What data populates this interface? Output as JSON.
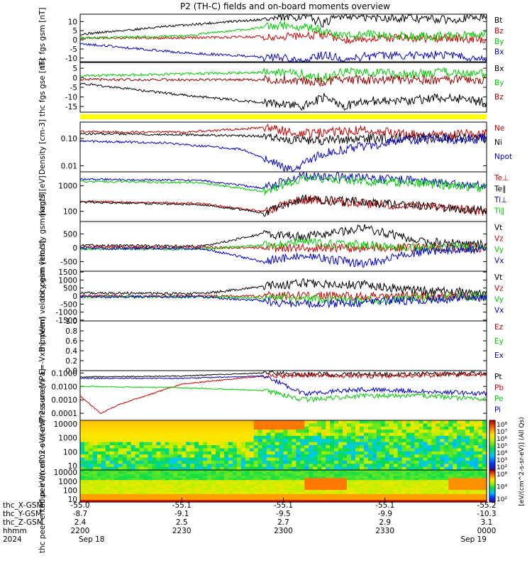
{
  "figure_title": "P2 (TH-C) fields and on-board moments overview",
  "chart_data": [
    {
      "type": "line",
      "ylabel": "thc fgs gsm [nT]",
      "y_ticks": [
        "10",
        "5",
        "0",
        "-5",
        "-10"
      ],
      "ylim": [
        -12,
        14
      ],
      "series": [
        {
          "name": "Bt",
          "color": "#000000",
          "x": [
            0,
            0.25,
            0.5,
            0.55,
            0.6,
            0.65,
            0.7,
            0.8,
            0.9,
            1.0
          ],
          "y": [
            3,
            8,
            12,
            13,
            9,
            14,
            12,
            12,
            11,
            13
          ]
        },
        {
          "name": "Bz",
          "color": "#cc0000",
          "x": [
            0,
            0.25,
            0.5,
            0.55,
            0.6,
            0.65,
            0.7,
            0.8,
            0.9,
            1.0
          ],
          "y": [
            1,
            1,
            2,
            2,
            3,
            0,
            1,
            1,
            1,
            0
          ]
        },
        {
          "name": "By",
          "color": "#00cc00",
          "x": [
            0,
            0.25,
            0.5,
            0.55,
            0.6,
            0.65,
            0.7,
            0.8,
            0.9,
            1.0
          ],
          "y": [
            1,
            2,
            8,
            7,
            5,
            2,
            3,
            2,
            2,
            3
          ]
        },
        {
          "name": "Bx",
          "color": "#0000cc",
          "x": [
            0,
            0.25,
            0.5,
            0.55,
            0.6,
            0.65,
            0.7,
            0.8,
            0.9,
            1.0
          ],
          "y": [
            -2,
            -7,
            -10,
            -12,
            -8,
            -11,
            -9,
            -9,
            -8,
            -11
          ]
        }
      ]
    },
    {
      "type": "line",
      "ylabel": "thc fgs gse [nT]",
      "y_ticks": [
        "5",
        "0",
        "-5",
        "-10",
        "-15"
      ],
      "ylim": [
        -18,
        8
      ],
      "series": [
        {
          "name": "Bx",
          "color": "#000000",
          "x": [
            0,
            0.25,
            0.5,
            0.55,
            0.6,
            0.65,
            0.7,
            0.8,
            0.9,
            1.0
          ],
          "y": [
            -3,
            -9,
            -14,
            -15,
            -10,
            -15,
            -12,
            -12,
            -10,
            -13
          ]
        },
        {
          "name": "By",
          "color": "#00cc00",
          "x": [
            0,
            0.25,
            0.5,
            0.55,
            0.6,
            0.65,
            0.7,
            0.8,
            0.9,
            1.0
          ],
          "y": [
            1,
            2,
            3,
            2,
            0,
            3,
            3,
            2,
            3,
            2
          ]
        },
        {
          "name": "Bz",
          "color": "#990000",
          "x": [
            0,
            0.25,
            0.5,
            0.55,
            0.6,
            0.65,
            0.7,
            0.8,
            0.9,
            1.0
          ],
          "y": [
            -1,
            -1,
            -1,
            -2,
            -2,
            -1,
            -1,
            -1,
            -1,
            -1
          ]
        }
      ]
    },
    {
      "type": "line",
      "ylabel": "Density [cm-3]",
      "y_ticks": [
        "0.10",
        "0.01"
      ],
      "ylog": true,
      "ylim": [
        0.006,
        0.4
      ],
      "series": [
        {
          "name": "Ne",
          "color": "#cc0000",
          "x": [
            0,
            0.25,
            0.45,
            0.55,
            0.7,
            0.85,
            1.0
          ],
          "y": [
            0.18,
            0.17,
            0.25,
            0.15,
            0.2,
            0.14,
            0.15
          ]
        },
        {
          "name": "Ni",
          "color": "#000000",
          "x": [
            0,
            0.25,
            0.45,
            0.55,
            0.7,
            0.85,
            1.0
          ],
          "y": [
            0.15,
            0.14,
            0.12,
            0.08,
            0.1,
            0.11,
            0.1
          ]
        },
        {
          "name": "Npot",
          "color": "#0000cc",
          "x": [
            0,
            0.2,
            0.4,
            0.52,
            0.6,
            0.8,
            1.0
          ],
          "y": [
            0.08,
            0.07,
            0.04,
            0.007,
            0.03,
            0.09,
            0.1
          ]
        }
      ]
    },
    {
      "type": "line",
      "ylabel": "magt3 [eV]",
      "y_ticks": [
        "1000",
        "100"
      ],
      "ylog": true,
      "ylim": [
        40,
        3500
      ],
      "series": [
        {
          "name": "Te⊥",
          "color": "#cc0000",
          "x": [
            0,
            0.3,
            0.45,
            0.55,
            0.7,
            0.85,
            1.0
          ],
          "y": [
            250,
            200,
            100,
            300,
            200,
            150,
            100
          ]
        },
        {
          "name": "Te∥",
          "color": "#000000",
          "x": [
            0,
            0.3,
            0.45,
            0.55,
            0.7,
            0.85,
            1.0
          ],
          "y": [
            230,
            180,
            90,
            320,
            220,
            160,
            110
          ]
        },
        {
          "name": "Ti⊥",
          "color": "#0000cc",
          "x": [
            0,
            0.3,
            0.45,
            0.55,
            0.7,
            0.85,
            1.0
          ],
          "y": [
            1800,
            1600,
            800,
            2500,
            2000,
            1500,
            1000
          ]
        },
        {
          "name": "Ti∥",
          "color": "#00cc00",
          "x": [
            0,
            0.3,
            0.45,
            0.55,
            0.7,
            0.85,
            1.0
          ],
          "y": [
            1500,
            1300,
            600,
            2000,
            1500,
            1200,
            800
          ]
        }
      ]
    },
    {
      "type": "line",
      "ylabel": "thc peim velocity gsm [km/s]",
      "y_ticks": [
        "500",
        "0",
        "-500"
      ],
      "ylim": [
        -850,
        950
      ],
      "series": [
        {
          "name": "Vt",
          "color": "#000000",
          "x": [
            0,
            0.3,
            0.45,
            0.55,
            0.7,
            0.85,
            1.0
          ],
          "y": [
            80,
            60,
            500,
            400,
            700,
            200,
            100
          ]
        },
        {
          "name": "Vz",
          "color": "#cc0000",
          "x": [
            0,
            0.3,
            0.45,
            0.55,
            0.7,
            0.85,
            1.0
          ],
          "y": [
            20,
            10,
            0,
            0,
            0,
            0,
            0
          ]
        },
        {
          "name": "Vy",
          "color": "#00cc00",
          "x": [
            0,
            0.3,
            0.45,
            0.55,
            0.7,
            0.85,
            1.0
          ],
          "y": [
            -40,
            -50,
            100,
            200,
            100,
            0,
            0
          ]
        },
        {
          "name": "Vx",
          "color": "#0000cc",
          "x": [
            0,
            0.3,
            0.45,
            0.55,
            0.7,
            0.85,
            1.0
          ],
          "y": [
            -20,
            -30,
            -500,
            -300,
            -600,
            -100,
            -50
          ]
        }
      ]
    },
    {
      "type": "line",
      "ylabel": "thc peem velocity gsm [km/s]",
      "y_ticks": [
        "1500",
        "1000",
        "500",
        "0",
        "-500",
        "-1000",
        "-1500"
      ],
      "ylim": [
        -1550,
        1550
      ],
      "series": [
        {
          "name": "Vt",
          "color": "#000000",
          "x": [
            0,
            0.3,
            0.45,
            0.55,
            0.7,
            0.85,
            1.0
          ],
          "y": [
            200,
            150,
            600,
            800,
            700,
            300,
            200
          ]
        },
        {
          "name": "Vz",
          "color": "#cc0000",
          "x": [
            0,
            0.3,
            0.45,
            0.55,
            0.7,
            0.85,
            1.0
          ],
          "y": [
            0,
            0,
            0,
            0,
            0,
            0,
            0
          ]
        },
        {
          "name": "Vy",
          "color": "#00cc00",
          "x": [
            0,
            0.3,
            0.45,
            0.55,
            0.7,
            0.85,
            1.0
          ],
          "y": [
            -50,
            -50,
            -100,
            -200,
            -300,
            -100,
            0
          ]
        },
        {
          "name": "Vx",
          "color": "#0000cc",
          "x": [
            0,
            0.3,
            0.45,
            0.55,
            0.7,
            0.85,
            1.0
          ],
          "y": [
            -50,
            -50,
            -300,
            -500,
            -400,
            -200,
            -100
          ]
        }
      ]
    },
    {
      "type": "line",
      "ylabel": "E=-VxB [mV/m]",
      "y_ticks": [
        "1.0",
        "0.8",
        "0.6",
        "0.4",
        "0.2",
        "0.0"
      ],
      "ylim": [
        0,
        1.0
      ],
      "series": [
        {
          "name": "Ez",
          "color": "#cc0000",
          "x": [],
          "y": []
        },
        {
          "name": "Ey",
          "color": "#00cc00",
          "x": [],
          "y": []
        },
        {
          "name": "Ex",
          "color": "#0000cc",
          "x": [],
          "y": []
        }
      ]
    },
    {
      "type": "line",
      "ylabel": "Pressure [nPa]",
      "y_ticks": [
        "0.1000",
        "0.0100",
        "0.0010",
        "0.0001"
      ],
      "ylog": true,
      "ylim": [
        3e-05,
        0.15
      ],
      "series": [
        {
          "name": "Pt",
          "color": "#000000",
          "x": [
            0,
            0.25,
            0.45,
            0.55,
            0.7,
            0.85,
            1.0
          ],
          "y": [
            0.05,
            0.06,
            0.1,
            0.08,
            0.08,
            0.08,
            0.09
          ]
        },
        {
          "name": "Pb",
          "color": "#cc0000",
          "x": [
            0,
            0.05,
            0.1,
            0.25,
            0.45,
            0.55,
            0.7,
            0.85,
            1.0
          ],
          "y": [
            0.002,
            0.0001,
            0.0005,
            0.015,
            0.06,
            0.07,
            0.06,
            0.07,
            0.08
          ]
        },
        {
          "name": "Pe",
          "color": "#00cc00",
          "x": [
            0,
            0.25,
            0.45,
            0.55,
            0.7,
            0.85,
            1.0
          ],
          "y": [
            0.01,
            0.008,
            0.005,
            0.001,
            0.002,
            0.002,
            0.001
          ]
        },
        {
          "name": "Pi",
          "color": "#0000cc",
          "x": [
            0,
            0.25,
            0.45,
            0.55,
            0.7,
            0.85,
            1.0
          ],
          "y": [
            0.04,
            0.04,
            0.06,
            0.003,
            0.006,
            0.004,
            0.003
          ]
        }
      ]
    },
    {
      "type": "heatmap",
      "ylabel": "thc peir en eflux eV/(cm^2-s-sr-eV)",
      "y_ticks": [
        "10000",
        "1000",
        "100",
        "10"
      ]
    },
    {
      "type": "heatmap",
      "ylabel": "thc peer en eflux eV/(cm^2-s-sr-eV)",
      "y_ticks": [
        "10000",
        "1000",
        "100",
        "10"
      ]
    }
  ],
  "colorbars": [
    {
      "ticks": [
        "10⁸",
        "10⁷",
        "10⁶",
        "10⁵",
        "10⁴",
        "10³",
        "10²"
      ],
      "label": "[eV/(cm^2-s-sr-eV)] (All Qs)"
    },
    {
      "ticks": [
        "10⁸",
        "10⁴",
        "10²"
      ],
      "label": "[eV/(cm^2-s-sr-eV)] (All Qs)"
    }
  ],
  "xaxis": {
    "row_labels": [
      "thc_X-GSM",
      "thc_Y-GSM",
      "thc_Z-GSM",
      "hhmm",
      "2024"
    ],
    "ticks": [
      {
        "values": [
          "-55.0",
          "-8.7",
          "2.4",
          "2200",
          "Sep 18"
        ]
      },
      {
        "values": [
          "-55.1",
          "-9.1",
          "2.5",
          "2230",
          ""
        ]
      },
      {
        "values": [
          "-55.1",
          "-9.5",
          "2.7",
          "2300",
          ""
        ]
      },
      {
        "values": [
          "-55.1",
          "-9.9",
          "2.9",
          "2330",
          ""
        ]
      },
      {
        "values": [
          "-55.2",
          "-10.3",
          "3.1",
          "0000",
          "Sep 19"
        ]
      }
    ]
  }
}
